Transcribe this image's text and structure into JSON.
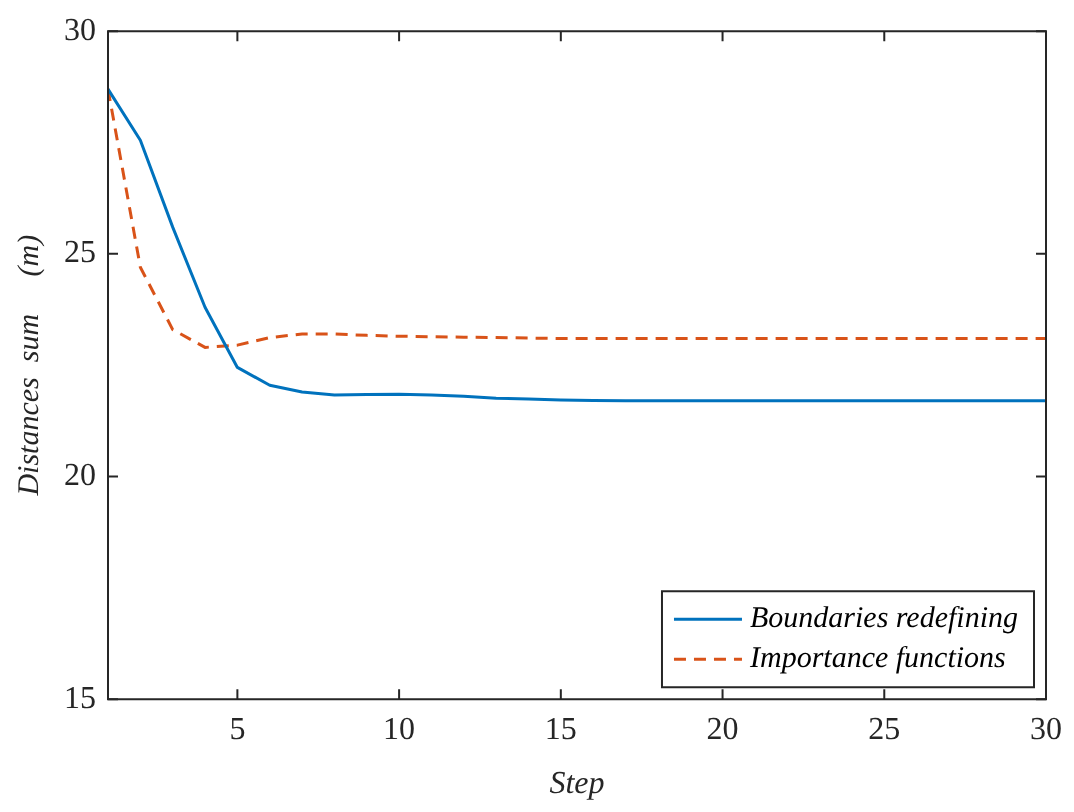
{
  "chart_data": {
    "type": "line",
    "xlabel": "Step",
    "ylabel": "Distances  sum     (m)",
    "x": [
      1,
      2,
      3,
      4,
      5,
      6,
      7,
      8,
      9,
      10,
      11,
      12,
      13,
      14,
      15,
      16,
      17,
      18,
      19,
      20,
      21,
      22,
      23,
      24,
      25,
      26,
      27,
      28,
      29,
      30
    ],
    "series": [
      {
        "name": "Boundaries redefining",
        "color": "#0072bd",
        "line_style": "solid",
        "values": [
          28.7,
          27.55,
          25.6,
          23.8,
          22.45,
          22.05,
          21.9,
          21.83,
          21.84,
          21.85,
          21.83,
          21.8,
          21.76,
          21.74,
          21.72,
          21.71,
          21.7,
          21.7,
          21.7,
          21.7,
          21.7,
          21.7,
          21.7,
          21.7,
          21.7,
          21.7,
          21.7,
          21.7,
          21.7,
          21.7
        ]
      },
      {
        "name": "Importance functions",
        "color": "#d95319",
        "line_style": "dashed",
        "values": [
          28.7,
          24.7,
          23.3,
          22.9,
          22.95,
          23.12,
          23.2,
          23.2,
          23.17,
          23.15,
          23.14,
          23.13,
          23.12,
          23.11,
          23.1,
          23.1,
          23.1,
          23.1,
          23.1,
          23.1,
          23.1,
          23.1,
          23.1,
          23.1,
          23.1,
          23.1,
          23.1,
          23.1,
          23.1,
          23.1
        ]
      }
    ],
    "xlim": [
      1,
      30
    ],
    "xticks": [
      5,
      10,
      15,
      20,
      25,
      30
    ],
    "ylim": [
      15,
      30
    ],
    "yticks": [
      15,
      20,
      25,
      30
    ],
    "grid": false,
    "legend": "bottom right",
    "marker": "none"
  }
}
